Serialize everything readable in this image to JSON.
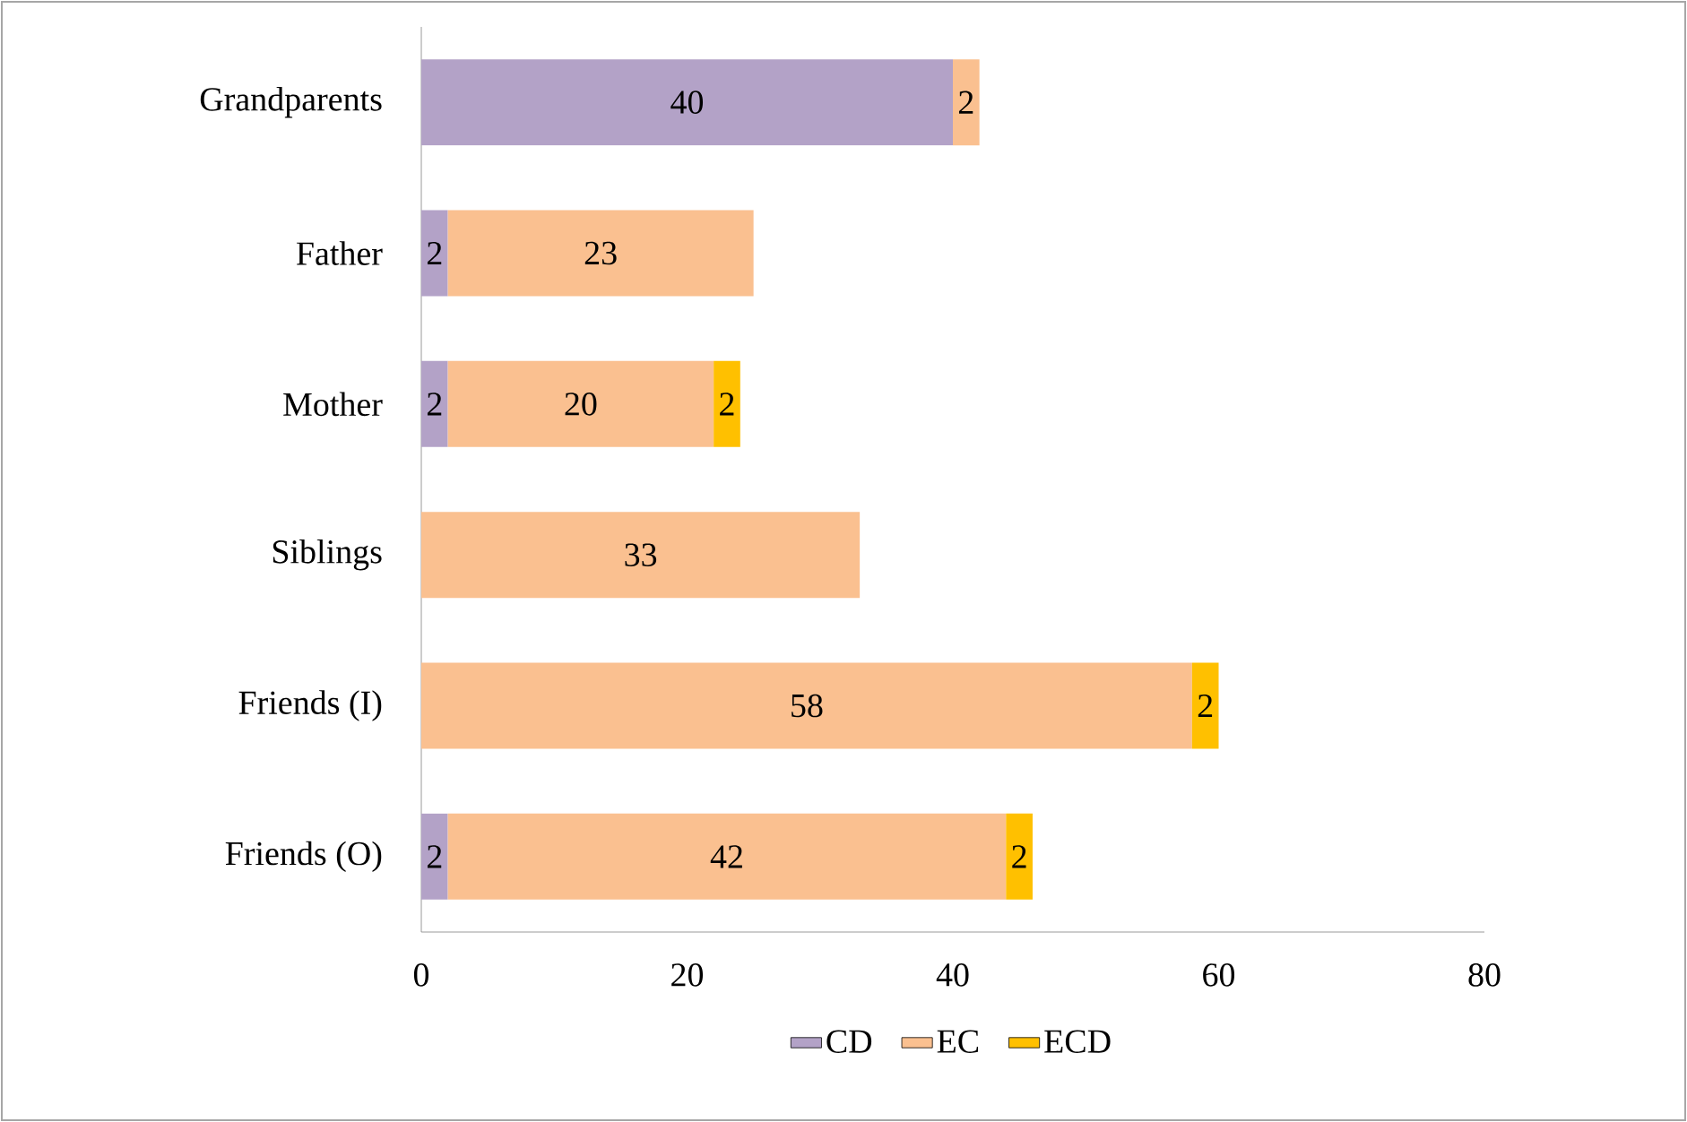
{
  "chart_data": {
    "type": "bar",
    "orientation": "horizontal",
    "stacked": true,
    "data_labels": true,
    "legend": "bottom",
    "categories": [
      "Grandparents",
      "Father",
      "Mother",
      "Siblings",
      "Friends (I)",
      "Friends (O)"
    ],
    "series": [
      {
        "name": "CD",
        "color": "#b3a2c7",
        "values": [
          40,
          2,
          2,
          null,
          null,
          2
        ]
      },
      {
        "name": "EC",
        "color": "#fac090",
        "values": [
          2,
          23,
          20,
          33,
          58,
          42
        ]
      },
      {
        "name": "ECD",
        "color": "#ffc000",
        "values": [
          null,
          null,
          2,
          null,
          2,
          2
        ]
      }
    ],
    "xlim": [
      0,
      80
    ],
    "xticks": [
      0,
      20,
      40,
      60,
      80
    ]
  }
}
